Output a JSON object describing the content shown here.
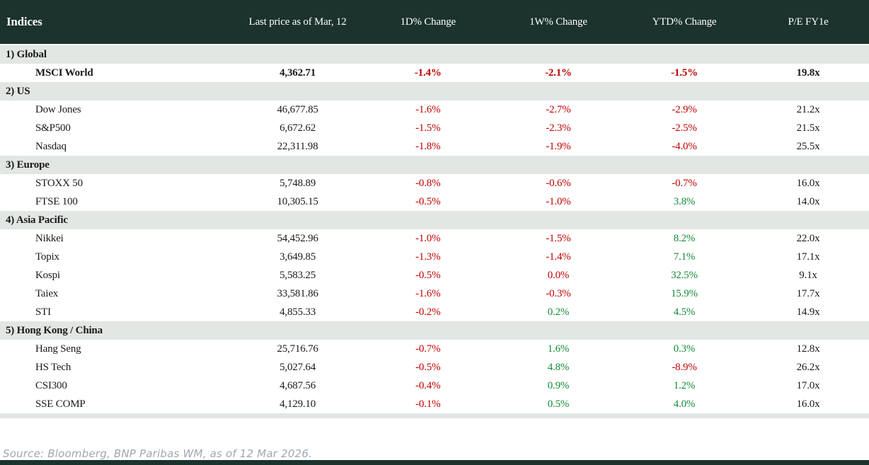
{
  "table": {
    "columns": [
      "Indices",
      "Last price as of Mar, 12",
      "1D% Change",
      "1W% Change",
      "YTD% Change",
      "P/E FY1e"
    ],
    "sections": [
      {
        "label": "1) Global",
        "rows": [
          {
            "name": "MSCI World",
            "bold": true,
            "price": "4,362.71",
            "d1": {
              "v": "-1.4%",
              "c": "red"
            },
            "w1": {
              "v": "-2.1%",
              "c": "red"
            },
            "ytd": {
              "v": "-1.5%",
              "c": "red"
            },
            "pe": "19.8x"
          }
        ]
      },
      {
        "label": "2) US",
        "rows": [
          {
            "name": "Dow Jones",
            "bold": false,
            "price": "46,677.85",
            "d1": {
              "v": "-1.6%",
              "c": "red"
            },
            "w1": {
              "v": "-2.7%",
              "c": "red"
            },
            "ytd": {
              "v": "-2.9%",
              "c": "red"
            },
            "pe": "21.2x"
          },
          {
            "name": "S&P500",
            "bold": false,
            "price": "6,672.62",
            "d1": {
              "v": "-1.5%",
              "c": "red"
            },
            "w1": {
              "v": "-2.3%",
              "c": "red"
            },
            "ytd": {
              "v": "-2.5%",
              "c": "red"
            },
            "pe": "21.5x"
          },
          {
            "name": "Nasdaq",
            "bold": false,
            "price": "22,311.98",
            "d1": {
              "v": "-1.8%",
              "c": "red"
            },
            "w1": {
              "v": "-1.9%",
              "c": "red"
            },
            "ytd": {
              "v": "-4.0%",
              "c": "red"
            },
            "pe": "25.5x"
          }
        ]
      },
      {
        "label": "3) Europe",
        "rows": [
          {
            "name": "STOXX 50",
            "bold": false,
            "price": "5,748.89",
            "d1": {
              "v": "-0.8%",
              "c": "red"
            },
            "w1": {
              "v": "-0.6%",
              "c": "red"
            },
            "ytd": {
              "v": "-0.7%",
              "c": "red"
            },
            "pe": "16.0x"
          },
          {
            "name": "FTSE 100",
            "bold": false,
            "price": "10,305.15",
            "d1": {
              "v": "-0.5%",
              "c": "red"
            },
            "w1": {
              "v": "-1.0%",
              "c": "red"
            },
            "ytd": {
              "v": "3.8%",
              "c": "green"
            },
            "pe": "14.0x"
          }
        ]
      },
      {
        "label": "4) Asia Pacific",
        "rows": [
          {
            "name": "Nikkei",
            "bold": false,
            "price": "54,452.96",
            "d1": {
              "v": "-1.0%",
              "c": "red"
            },
            "w1": {
              "v": "-1.5%",
              "c": "red"
            },
            "ytd": {
              "v": "8.2%",
              "c": "green"
            },
            "pe": "22.0x"
          },
          {
            "name": "Topix",
            "bold": false,
            "price": "3,649.85",
            "d1": {
              "v": "-1.3%",
              "c": "red"
            },
            "w1": {
              "v": "-1.4%",
              "c": "red"
            },
            "ytd": {
              "v": "7.1%",
              "c": "green"
            },
            "pe": "17.1x"
          },
          {
            "name": "Kospi",
            "bold": false,
            "price": "5,583.25",
            "d1": {
              "v": "-0.5%",
              "c": "red"
            },
            "w1": {
              "v": "0.0%",
              "c": "red"
            },
            "ytd": {
              "v": "32.5%",
              "c": "green"
            },
            "pe": "9.1x"
          },
          {
            "name": "Taiex",
            "bold": false,
            "price": "33,581.86",
            "d1": {
              "v": "-1.6%",
              "c": "red"
            },
            "w1": {
              "v": "-0.3%",
              "c": "red"
            },
            "ytd": {
              "v": "15.9%",
              "c": "green"
            },
            "pe": "17.7x"
          },
          {
            "name": "STI",
            "bold": false,
            "price": "4,855.33",
            "d1": {
              "v": "-0.2%",
              "c": "red"
            },
            "w1": {
              "v": "0.2%",
              "c": "green"
            },
            "ytd": {
              "v": "4.5%",
              "c": "green"
            },
            "pe": "14.9x"
          }
        ]
      },
      {
        "label": "5) Hong Kong / China",
        "rows": [
          {
            "name": "Hang Seng",
            "bold": false,
            "price": "25,716.76",
            "d1": {
              "v": "-0.7%",
              "c": "red"
            },
            "w1": {
              "v": "1.6%",
              "c": "green"
            },
            "ytd": {
              "v": "0.3%",
              "c": "green"
            },
            "pe": "12.8x"
          },
          {
            "name": "HS Tech",
            "bold": false,
            "price": "5,027.64",
            "d1": {
              "v": "-0.5%",
              "c": "red"
            },
            "w1": {
              "v": "4.8%",
              "c": "green"
            },
            "ytd": {
              "v": "-8.9%",
              "c": "red"
            },
            "pe": "26.2x"
          },
          {
            "name": "CSI300",
            "bold": false,
            "price": "4,687.56",
            "d1": {
              "v": "-0.4%",
              "c": "red"
            },
            "w1": {
              "v": "0.9%",
              "c": "green"
            },
            "ytd": {
              "v": "1.2%",
              "c": "green"
            },
            "pe": "17.0x"
          },
          {
            "name": "SSE COMP",
            "bold": false,
            "price": "4,129.10",
            "d1": {
              "v": "-0.1%",
              "c": "red"
            },
            "w1": {
              "v": "0.5%",
              "c": "green"
            },
            "ytd": {
              "v": "4.0%",
              "c": "green"
            },
            "pe": "16.0x"
          }
        ]
      }
    ]
  },
  "footer": {
    "source": "Source: Bloomberg, BNP Paribas WM, as of 12 Mar 2026."
  },
  "colors": {
    "header_bg": "#1b322d",
    "section_band_bg": "#e2e7e3",
    "negative": "#c00000",
    "positive": "#168a38",
    "source_text": "#9fa8b0",
    "bottom_bar": "#1b322d"
  }
}
